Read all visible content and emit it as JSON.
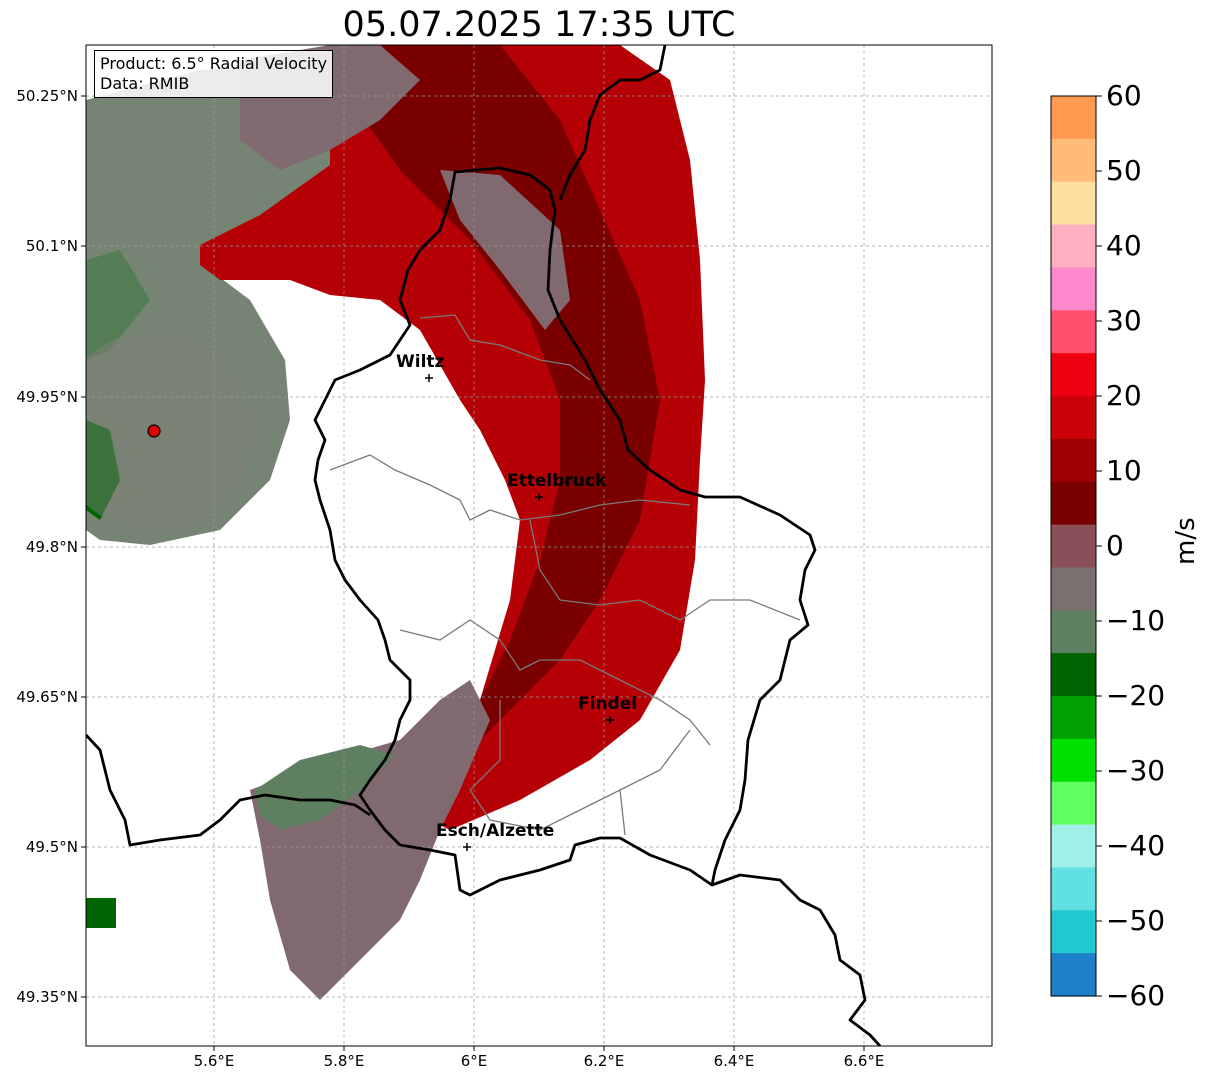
{
  "title": "05.07.2025 17:35 UTC",
  "info": {
    "product_line": "Product: 6.5° Radial Velocity",
    "data_line": "Data: RMIB"
  },
  "axes": {
    "lat_ticks": [
      "50.25°N",
      "50.1°N",
      "49.95°N",
      "49.8°N",
      "49.65°N",
      "49.5°N",
      "49.35°N"
    ],
    "lon_ticks": [
      "5.6°E",
      "5.8°E",
      "6°E",
      "6.2°E",
      "6.4°E",
      "6.6°E"
    ]
  },
  "cities": [
    {
      "name": "Wiltz"
    },
    {
      "name": "Ettelbruck"
    },
    {
      "name": "Findel"
    },
    {
      "name": "Esch/Alzette"
    }
  ],
  "colorbar": {
    "unit": "m/s",
    "range": [
      -60,
      60
    ],
    "tick_labels": [
      "60",
      "50",
      "40",
      "30",
      "20",
      "10",
      "0",
      "−10",
      "−20",
      "−30",
      "−40",
      "−50",
      "−60"
    ],
    "colors_top_to_bottom": [
      "#ff9a50",
      "#ffbb78",
      "#ffe0a0",
      "#ffb0c0",
      "#ff88cc",
      "#ff5070",
      "#ee0010",
      "#cc0008",
      "#a00005",
      "#7a0000",
      "#8a5058",
      "#7a7070",
      "#5e8060",
      "#006400",
      "#00a000",
      "#00e000",
      "#60ff60",
      "#a0f0e8",
      "#60e0e0",
      "#20c8d0",
      "#1e80c8"
    ]
  },
  "legend_colors": {
    "radar_site": "#dd0000",
    "border": "#000000",
    "canton_lines": "#7a7a7a",
    "receding_strong": "#a00005",
    "receding_dark": "#7a0000",
    "near_zero": "#806a70",
    "approaching": "#5e8060"
  }
}
